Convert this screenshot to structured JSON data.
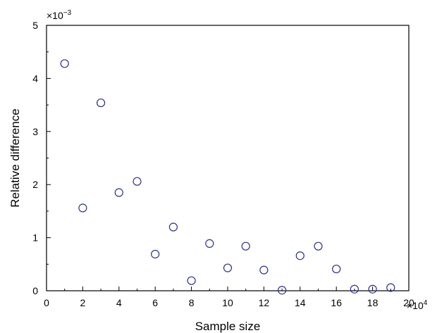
{
  "chart_data": {
    "type": "scatter",
    "xlabel": "Sample size",
    "ylabel": "Relative difference",
    "x_multiplier": "×10",
    "x_multiplier_exp": "4",
    "y_multiplier": "×10",
    "y_multiplier_exp": "−3",
    "xlim": [
      0,
      20
    ],
    "ylim": [
      0,
      5
    ],
    "x_ticks": [
      0,
      2,
      4,
      6,
      8,
      10,
      12,
      14,
      16,
      18,
      20
    ],
    "y_ticks": [
      0,
      1,
      2,
      3,
      4,
      5
    ],
    "grid": false,
    "marker": "open-circle",
    "marker_color": "#2b2f8f",
    "points": [
      {
        "x": 1,
        "y": 4.28
      },
      {
        "x": 2,
        "y": 1.56
      },
      {
        "x": 3,
        "y": 3.54
      },
      {
        "x": 4,
        "y": 1.85
      },
      {
        "x": 5,
        "y": 2.06
      },
      {
        "x": 6,
        "y": 0.69
      },
      {
        "x": 7,
        "y": 1.2
      },
      {
        "x": 8,
        "y": 0.19
      },
      {
        "x": 9,
        "y": 0.89
      },
      {
        "x": 10,
        "y": 0.43
      },
      {
        "x": 11,
        "y": 0.84
      },
      {
        "x": 12,
        "y": 0.39
      },
      {
        "x": 13,
        "y": 0.01
      },
      {
        "x": 14,
        "y": 0.66
      },
      {
        "x": 15,
        "y": 0.84
      },
      {
        "x": 16,
        "y": 0.41
      },
      {
        "x": 17,
        "y": 0.03
      },
      {
        "x": 18,
        "y": 0.03
      },
      {
        "x": 19,
        "y": 0.06
      }
    ]
  }
}
